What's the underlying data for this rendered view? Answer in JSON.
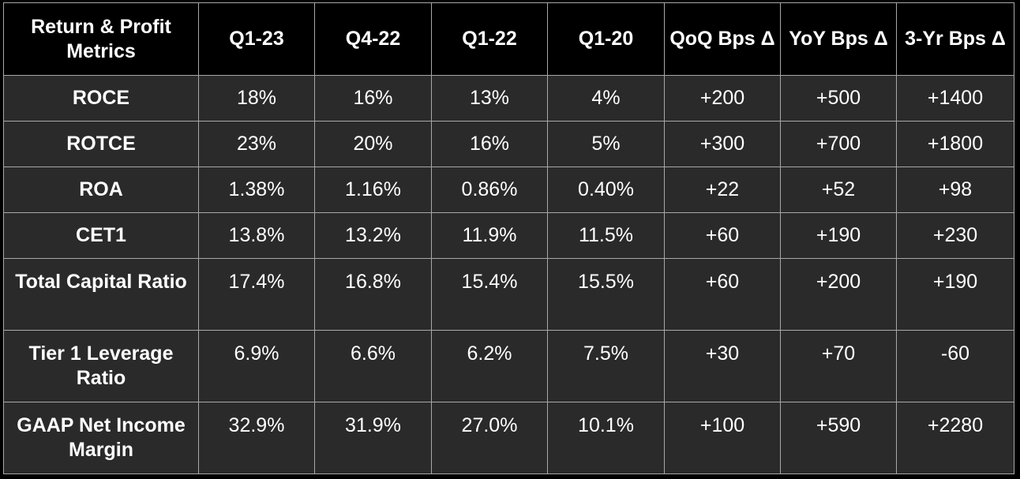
{
  "table": {
    "headers": [
      "Return & Profit Metrics",
      "Q1-23",
      "Q4-22",
      "Q1-22",
      "Q1-20",
      "QoQ Bps Δ",
      "YoY Bps Δ",
      "3-Yr Bps Δ"
    ],
    "rows": [
      {
        "label": "ROCE",
        "values": [
          "18%",
          "16%",
          "13%",
          "4%",
          "+200",
          "+500",
          "+1400"
        ]
      },
      {
        "label": "ROTCE",
        "values": [
          "23%",
          "20%",
          "16%",
          "5%",
          "+300",
          "+700",
          "+1800"
        ]
      },
      {
        "label": "ROA",
        "values": [
          "1.38%",
          "1.16%",
          "0.86%",
          "0.40%",
          "+22",
          "+52",
          "+98"
        ]
      },
      {
        "label": "CET1",
        "values": [
          "13.8%",
          "13.2%",
          "11.9%",
          "11.5%",
          "+60",
          "+190",
          "+230"
        ]
      },
      {
        "label": "Total Capital Ratio",
        "values": [
          "17.4%",
          "16.8%",
          "15.4%",
          "15.5%",
          "+60",
          "+200",
          "+190"
        ]
      },
      {
        "label": "Tier 1 Leverage Ratio",
        "values": [
          "6.9%",
          "6.6%",
          "6.2%",
          "7.5%",
          "+30",
          "+70",
          "-60"
        ]
      },
      {
        "label": "GAAP Net Income Margin",
        "values": [
          "32.9%",
          "31.9%",
          "27.0%",
          "10.1%",
          "+100",
          "+590",
          "+2280"
        ]
      }
    ]
  }
}
